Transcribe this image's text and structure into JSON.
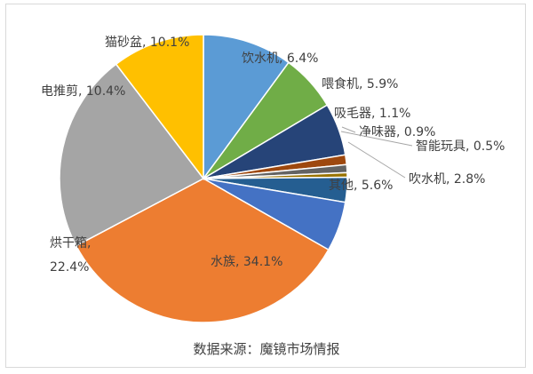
{
  "chart_data": {
    "type": "pie",
    "categories": [
      "猫砂盆",
      "饮水机",
      "喂食机",
      "吸毛器",
      "净味器",
      "智能玩具",
      "吹水机",
      "其他",
      "水族",
      "烘干箱",
      "电推剪"
    ],
    "values": [
      10.1,
      6.4,
      5.9,
      1.1,
      0.9,
      0.5,
      2.8,
      5.6,
      34.1,
      22.4,
      10.4
    ],
    "labels": [
      "猫砂盆, 10.1%",
      "饮水机, 6.4%",
      "喂食机, 5.9%",
      "吸毛器, 1.1%",
      "净味器, 0.9%",
      "智能玩具, 0.5%",
      "吹水机, 2.8%",
      "其他, 5.6%",
      "水族, 34.1%",
      "烘干箱,\n22.4%",
      "电推剪, 10.4%"
    ],
    "colors": [
      "#5b9bd5",
      "#70ad47",
      "#264478",
      "#9e480e",
      "#636363",
      "#997300",
      "#255e91",
      "#4472c4",
      "#ed7d31",
      "#a5a5a5",
      "#ffc000"
    ],
    "start_angle_deg": 90,
    "direction": "clockwise",
    "title": "",
    "legend": "none"
  },
  "footer": {
    "source": "数据来源：魔镜市场情报"
  }
}
